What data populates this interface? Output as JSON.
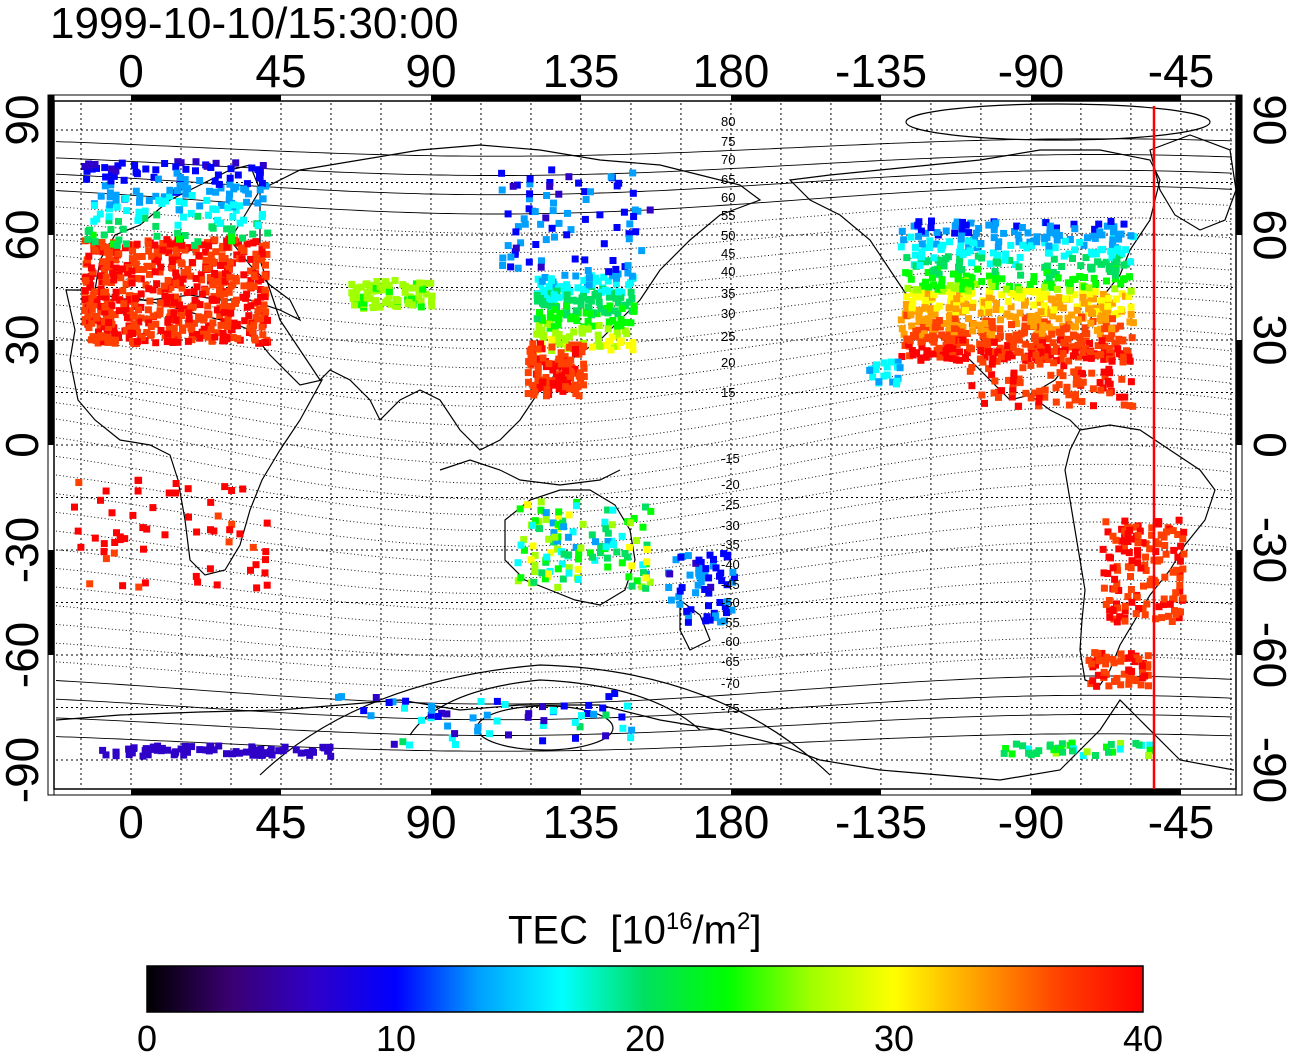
{
  "timestamp": "1999-10-10/15:30:00",
  "x_ticks": [
    "0",
    "45",
    "90",
    "135",
    "180",
    "-135",
    "-90",
    "-45"
  ],
  "y_ticks": [
    "90",
    "60",
    "30",
    "0",
    "-30",
    "-60",
    "-90"
  ],
  "contour_labels": [
    "80",
    "75",
    "70",
    "65",
    "60",
    "55",
    "50",
    "45",
    "40",
    "35",
    "30",
    "25",
    "20",
    "15",
    "-15",
    "-20",
    "-25",
    "-30",
    "-35",
    "-40",
    "-45",
    "-50",
    "-55",
    "-60",
    "-65",
    "-70",
    "-75"
  ],
  "colorbar": {
    "label_text": "TEC",
    "unit_open": "[10",
    "unit_exp1": "16",
    "unit_mid": "/m",
    "unit_exp2": "2",
    "unit_close": "]",
    "ticks": [
      "0",
      "10",
      "20",
      "30",
      "40"
    ],
    "range": [
      0,
      40
    ],
    "colors": [
      "#000000",
      "#3a0070",
      "#2f00c8",
      "#0000ff",
      "#00a0ff",
      "#00ffff",
      "#00e060",
      "#00ff00",
      "#a0ff00",
      "#ffff00",
      "#ffa000",
      "#ff4000",
      "#ff0000"
    ]
  },
  "marker_line": {
    "color": "#ff0000",
    "lon": -53
  },
  "colors": {
    "land": "#000000",
    "grid": "#000000"
  }
}
